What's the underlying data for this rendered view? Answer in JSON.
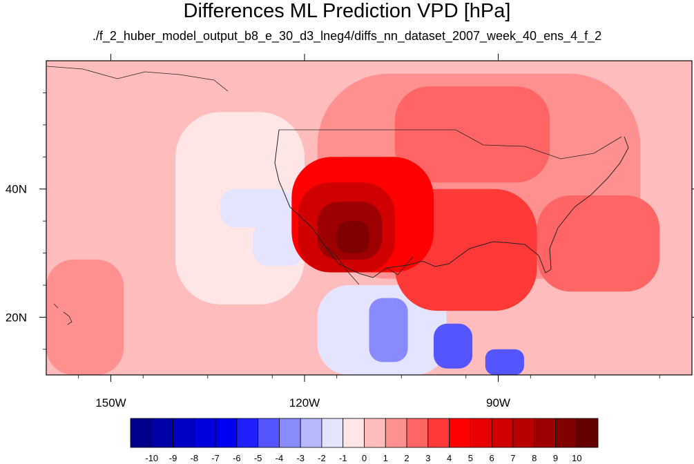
{
  "chart_data": {
    "type": "heatmap",
    "title": "Differences ML Prediction VPD [hPa]",
    "subtitle": "./f_2_huber_model_output_b8_e_30_d3_lneg4/diffs_nn_dataset_2007_week_40_ens_4_f_2",
    "xlabel": "",
    "ylabel": "",
    "xlim": [
      -160,
      -60
    ],
    "ylim": [
      11,
      60
    ],
    "x_ticks": [
      -150,
      -120,
      -90
    ],
    "x_tick_labels": [
      "150W",
      "120W",
      "90W"
    ],
    "y_ticks": [
      20,
      40
    ],
    "y_tick_labels": [
      "20N",
      "40N"
    ],
    "colorbar": {
      "levels": [
        -10,
        -9,
        -8,
        -7,
        -6,
        -5,
        -4,
        -3,
        -2,
        -1,
        0,
        1,
        2,
        3,
        4,
        5,
        6,
        7,
        8,
        9,
        10
      ],
      "level_labels": [
        "-10",
        "-9",
        "-8",
        "-7",
        "-6",
        "-5",
        "-4",
        "-3",
        "-2",
        "-1",
        "0",
        "1",
        "2",
        "3",
        "4",
        "5",
        "6",
        "7",
        "8",
        "9",
        "10"
      ],
      "colors": [
        "#00008b",
        "#0000a8",
        "#0000c4",
        "#0000dc",
        "#0000f0",
        "#2020ff",
        "#5555ff",
        "#8a8aff",
        "#b8b8ff",
        "#e4e4ff",
        "#ffe6e6",
        "#ffbcbc",
        "#ff9090",
        "#ff6565",
        "#ff3838",
        "#ff0000",
        "#e80000",
        "#d00000",
        "#b80000",
        "#9c0000",
        "#800000",
        "#640000"
      ]
    },
    "regions": [
      {
        "lon": [
          -160,
          -60
        ],
        "lat": [
          11,
          60
        ],
        "value": 0.5
      },
      {
        "lon": [
          -140,
          -120
        ],
        "lat": [
          22,
          52
        ],
        "value": -0.5
      },
      {
        "lon": [
          -133,
          -122
        ],
        "lat": [
          34,
          40
        ],
        "value": -1.5
      },
      {
        "lon": [
          -128,
          -120
        ],
        "lat": [
          28,
          35
        ],
        "value": -1.5
      },
      {
        "lon": [
          -118,
          -98
        ],
        "lat": [
          11,
          25
        ],
        "value": -1.5
      },
      {
        "lon": [
          -110,
          -104
        ],
        "lat": [
          13,
          23
        ],
        "value": -3.5
      },
      {
        "lon": [
          -100,
          -94
        ],
        "lat": [
          12,
          19
        ],
        "value": -4.5
      },
      {
        "lon": [
          -92,
          -86
        ],
        "lat": [
          11,
          15
        ],
        "value": -4.5
      },
      {
        "lon": [
          -160,
          -148
        ],
        "lat": [
          11,
          29
        ],
        "value": 1.5
      },
      {
        "lon": [
          -118,
          -68
        ],
        "lat": [
          26,
          58
        ],
        "value": 1.5
      },
      {
        "lon": [
          -106,
          -82
        ],
        "lat": [
          41,
          56
        ],
        "value": 2.5
      },
      {
        "lon": [
          -106,
          -84
        ],
        "lat": [
          21,
          40
        ],
        "value": 3.5
      },
      {
        "lon": [
          -84,
          -65
        ],
        "lat": [
          24,
          39
        ],
        "value": 2.5
      },
      {
        "lon": [
          -122,
          -100
        ],
        "lat": [
          27,
          45
        ],
        "value": 4.5
      },
      {
        "lon": [
          -121,
          -106
        ],
        "lat": [
          27,
          41
        ],
        "value": 6.5
      },
      {
        "lon": [
          -118,
          -108
        ],
        "lat": [
          29,
          38
        ],
        "value": 8.5
      },
      {
        "lon": [
          -115,
          -110
        ],
        "lat": [
          30,
          35
        ],
        "value": 9.5
      }
    ]
  }
}
